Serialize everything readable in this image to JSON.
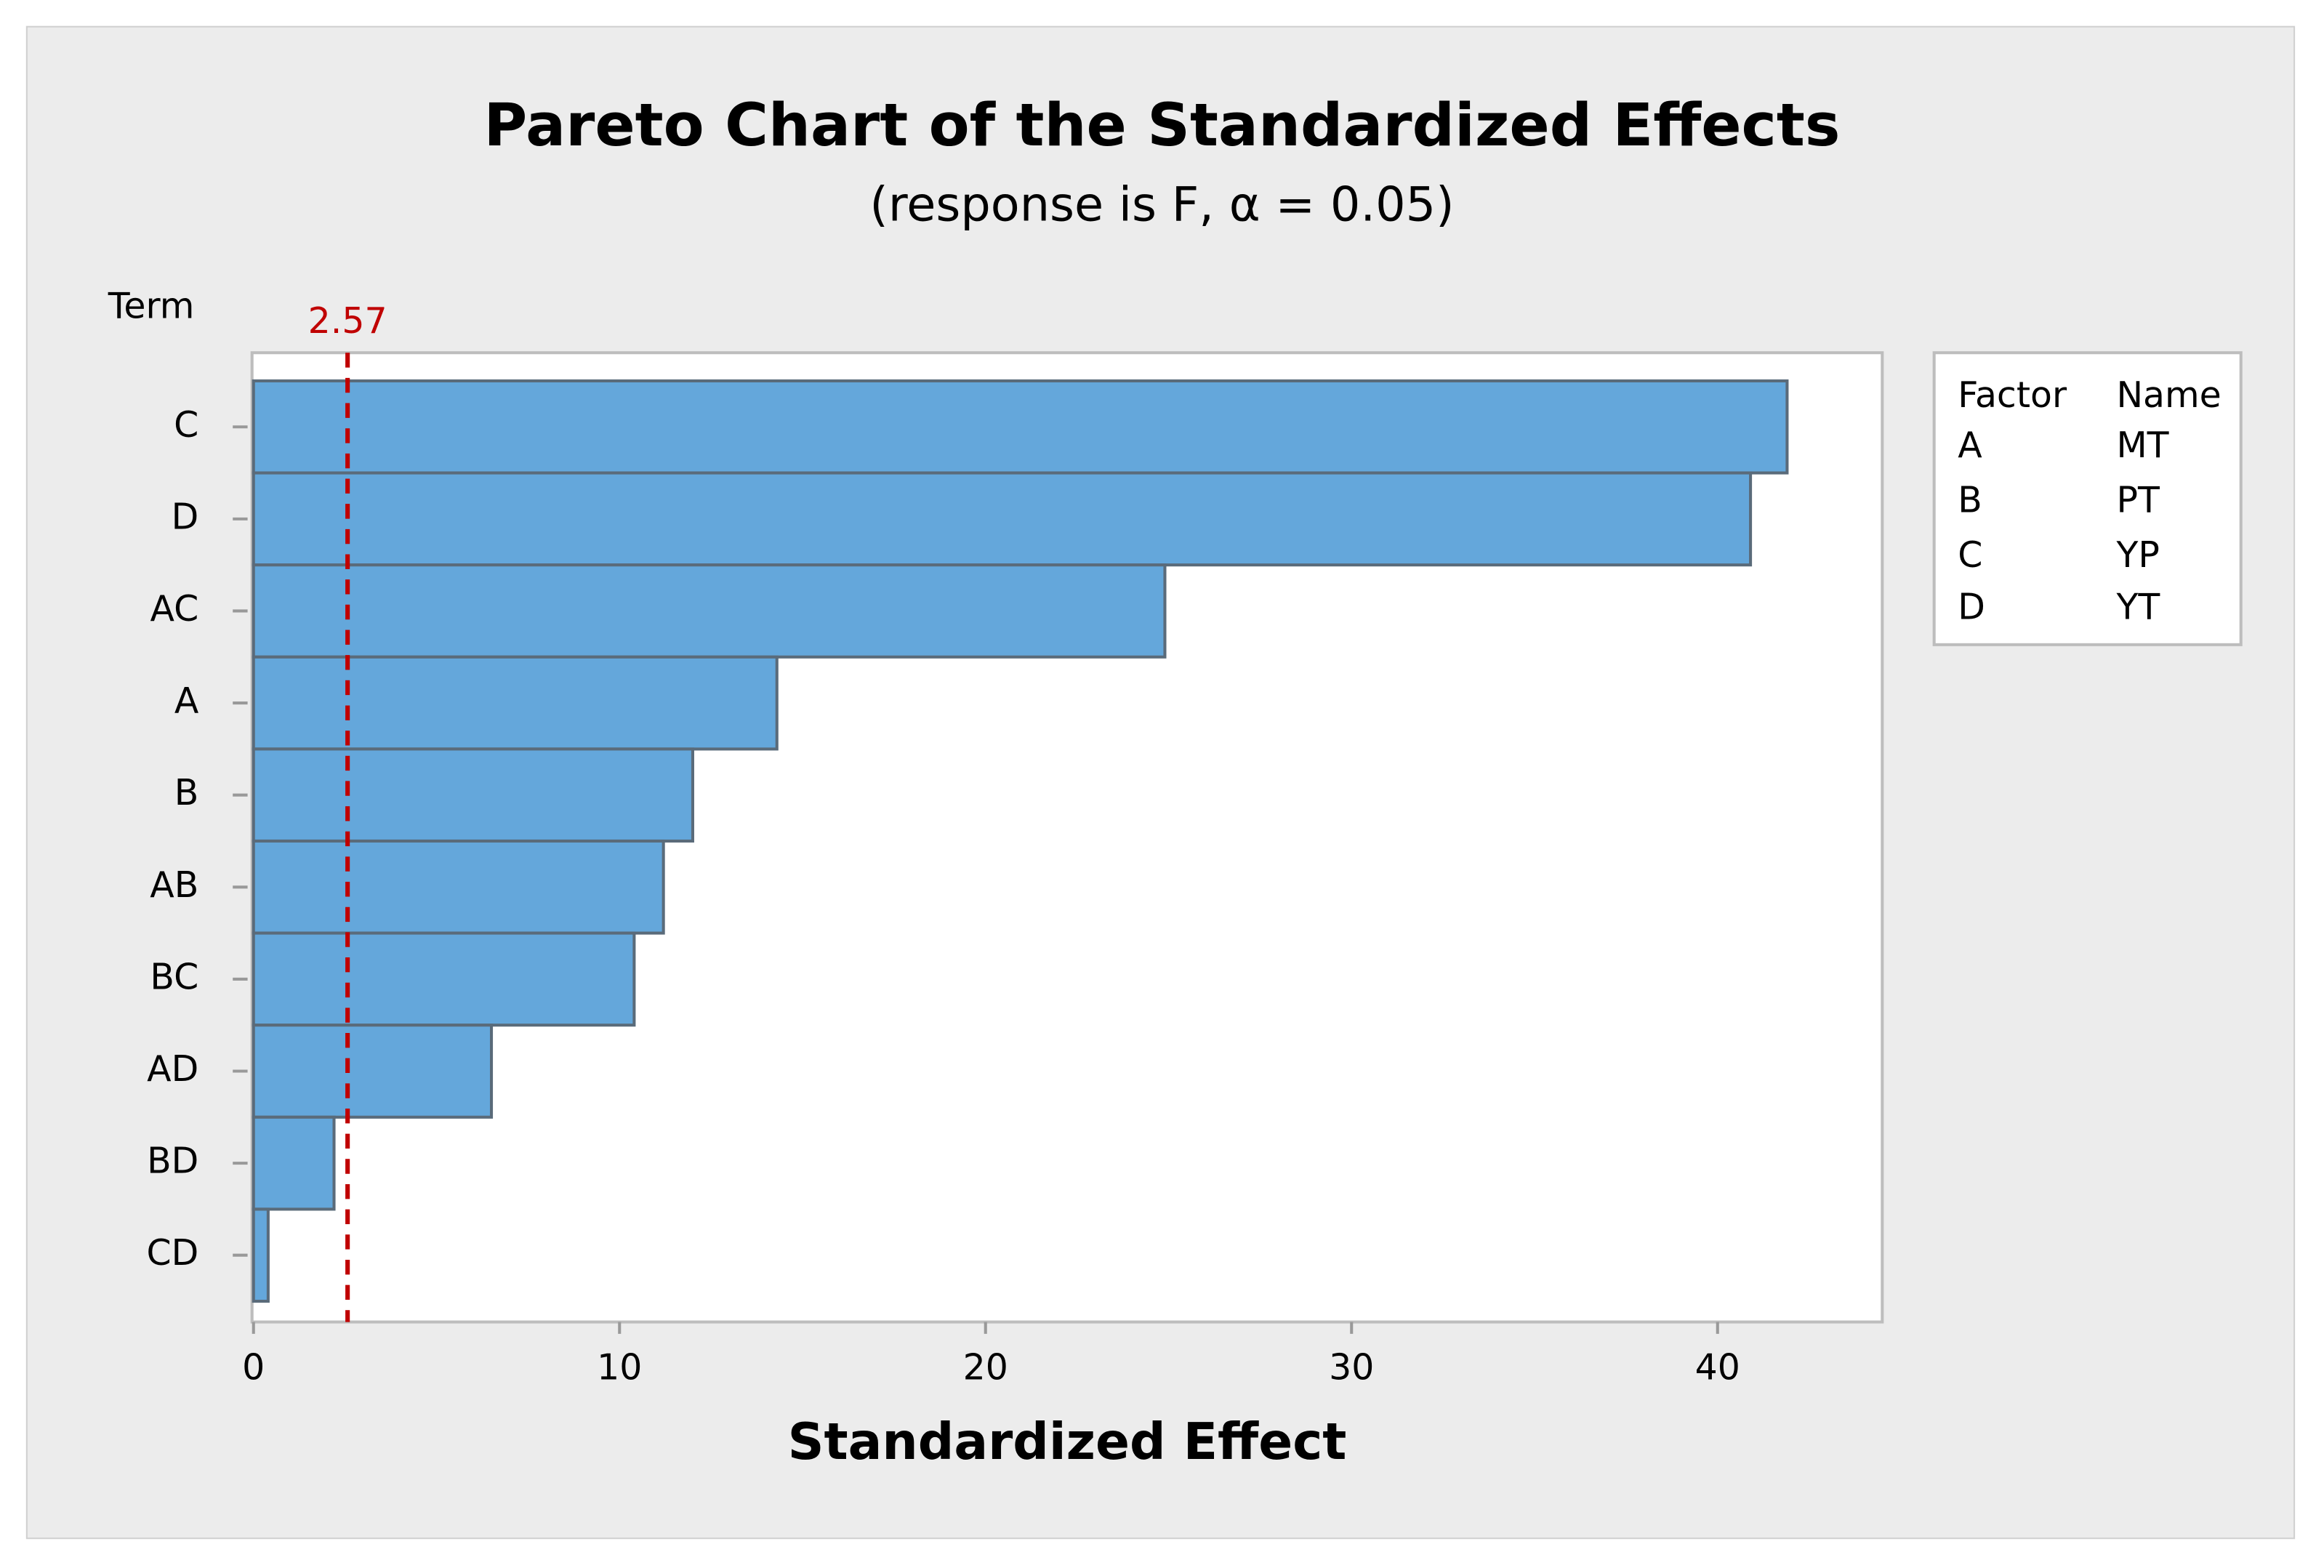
{
  "chart_data": {
    "type": "bar",
    "orientation": "horizontal",
    "title": "Pareto Chart of the Standardized Effects",
    "subtitle": "(response is F, α = 0.05)",
    "x_label": "Standardized Effect",
    "y_label": "Term",
    "categories": [
      "C",
      "D",
      "AC",
      "A",
      "B",
      "AB",
      "BC",
      "AD",
      "BD",
      "CD"
    ],
    "values": [
      41.9,
      40.9,
      24.9,
      14.3,
      12.0,
      11.2,
      10.4,
      6.5,
      2.2,
      0.4
    ],
    "color": "#64a7db",
    "xlim": [
      0,
      44.5
    ],
    "xticks": [
      0,
      10,
      20,
      30,
      40
    ],
    "reference_line": {
      "value": 2.57,
      "color": "#c00000"
    },
    "factor_table": {
      "header": [
        "Factor",
        "Name"
      ],
      "rows": [
        [
          "A",
          "MT"
        ],
        [
          "B",
          "PT"
        ],
        [
          "C",
          "YP"
        ],
        [
          "D",
          "YT"
        ]
      ]
    }
  }
}
